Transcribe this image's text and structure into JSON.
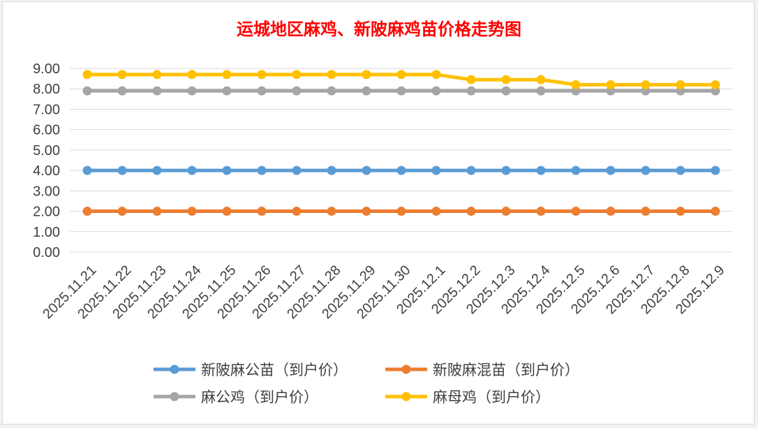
{
  "chart_data": {
    "type": "line",
    "title": "运城地区麻鸡、新陂麻鸡苗价格走势图",
    "title_color": "#ff0000",
    "categories": [
      "2025.11.21",
      "2025.11.22",
      "2025.11.23",
      "2025.11.24",
      "2025.11.25",
      "2025.11.26",
      "2025.11.27",
      "2025.11.28",
      "2025.11.29",
      "2025.11.30",
      "2025.12.1",
      "2025.12.2",
      "2025.12.3",
      "2025.12.4",
      "2025.12.5",
      "2025.12.6",
      "2025.12.7",
      "2025.12.8",
      "2025.12.9"
    ],
    "y_ticks": [
      "0.00",
      "1.00",
      "2.00",
      "3.00",
      "4.00",
      "5.00",
      "6.00",
      "7.00",
      "8.00",
      "9.00"
    ],
    "ylim": [
      0,
      9
    ],
    "grid": true,
    "legend_position": "bottom",
    "series": [
      {
        "name": "新陂麻公苗（到户价）",
        "color": "#5b9bd5",
        "values": [
          4,
          4,
          4,
          4,
          4,
          4,
          4,
          4,
          4,
          4,
          4,
          4,
          4,
          4,
          4,
          4,
          4,
          4,
          4
        ]
      },
      {
        "name": "新陂麻混苗（到户价）",
        "color": "#ed7d31",
        "values": [
          2,
          2,
          2,
          2,
          2,
          2,
          2,
          2,
          2,
          2,
          2,
          2,
          2,
          2,
          2,
          2,
          2,
          2,
          2
        ]
      },
      {
        "name": "麻公鸡（到户价）",
        "color": "#a5a5a5",
        "values": [
          7.9,
          7.9,
          7.9,
          7.9,
          7.9,
          7.9,
          7.9,
          7.9,
          7.9,
          7.9,
          7.9,
          7.9,
          7.9,
          7.9,
          7.9,
          7.9,
          7.9,
          7.9,
          7.9
        ]
      },
      {
        "name": "麻母鸡（到户价）",
        "color": "#ffc000",
        "values": [
          8.7,
          8.7,
          8.7,
          8.7,
          8.7,
          8.7,
          8.7,
          8.7,
          8.7,
          8.7,
          8.7,
          8.45,
          8.45,
          8.45,
          8.2,
          8.2,
          8.2,
          8.2,
          8.2
        ]
      }
    ]
  }
}
